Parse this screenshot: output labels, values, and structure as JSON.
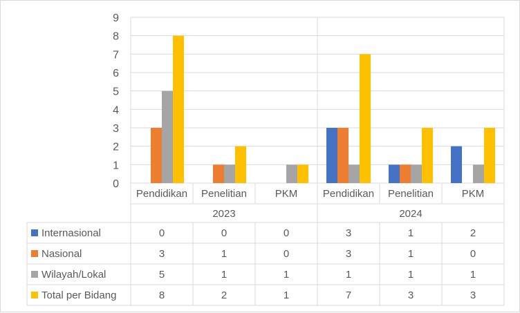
{
  "chart_data": {
    "type": "bar",
    "groups": [
      {
        "label": "2023",
        "categories": [
          "Pendidikan",
          "Penelitian",
          "PKM"
        ]
      },
      {
        "label": "2024",
        "categories": [
          "Pendidikan",
          "Penelitian",
          "PKM"
        ]
      }
    ],
    "series": [
      {
        "name": "Internasional",
        "color": "#4472c4",
        "values": [
          0,
          0,
          0,
          3,
          1,
          2
        ]
      },
      {
        "name": "Nasional",
        "color": "#ed7d31",
        "values": [
          3,
          1,
          0,
          3,
          1,
          0
        ]
      },
      {
        "name": "Wilayah/Lokal",
        "color": "#a5a5a5",
        "values": [
          5,
          1,
          1,
          1,
          1,
          1
        ]
      },
      {
        "name": "Total per Bidang",
        "color": "#ffc000",
        "values": [
          8,
          2,
          1,
          7,
          3,
          3
        ]
      }
    ],
    "ylim": [
      0,
      9
    ],
    "yticks": [
      0,
      1,
      2,
      3,
      4,
      5,
      6,
      7,
      8,
      9
    ],
    "grid": true,
    "data_table": true,
    "legend": "data table"
  }
}
